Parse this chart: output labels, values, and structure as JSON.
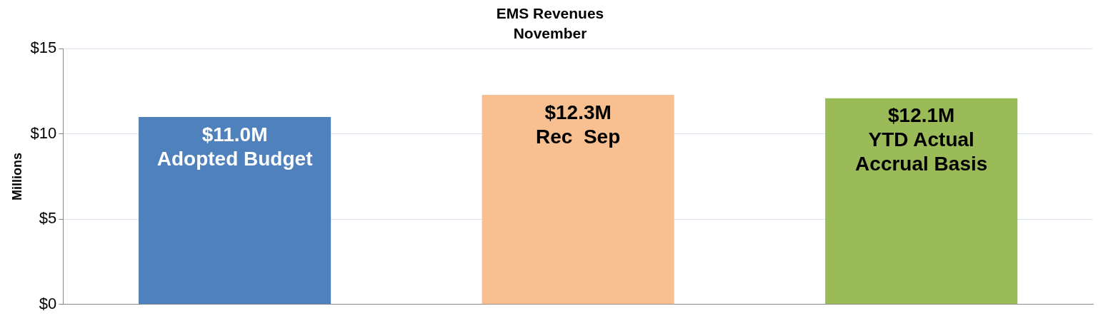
{
  "chart_data": {
    "type": "bar",
    "title": "EMS Revenues",
    "subtitle": "November",
    "ylabel": "Millions",
    "categories": [
      null,
      null,
      null
    ],
    "values": [
      11.0,
      12.3,
      12.1
    ],
    "colors": [
      "#4f81bd",
      "#f8c090",
      "#9bbb59"
    ],
    "value_labels": [
      "$11.0M",
      "$12.3M",
      "$12.1M"
    ],
    "annotations": [
      "Adopted Budget",
      "Rec  Sep",
      "YTD Actual\nAccrual Basis"
    ],
    "ylim": [
      0,
      15
    ],
    "yticks": [
      {
        "value": 0,
        "label": "$0"
      },
      {
        "value": 5,
        "label": "$5"
      },
      {
        "value": 10,
        "label": "$10"
      },
      {
        "value": 15,
        "label": "$15"
      }
    ],
    "grid": "y",
    "legend": false
  }
}
